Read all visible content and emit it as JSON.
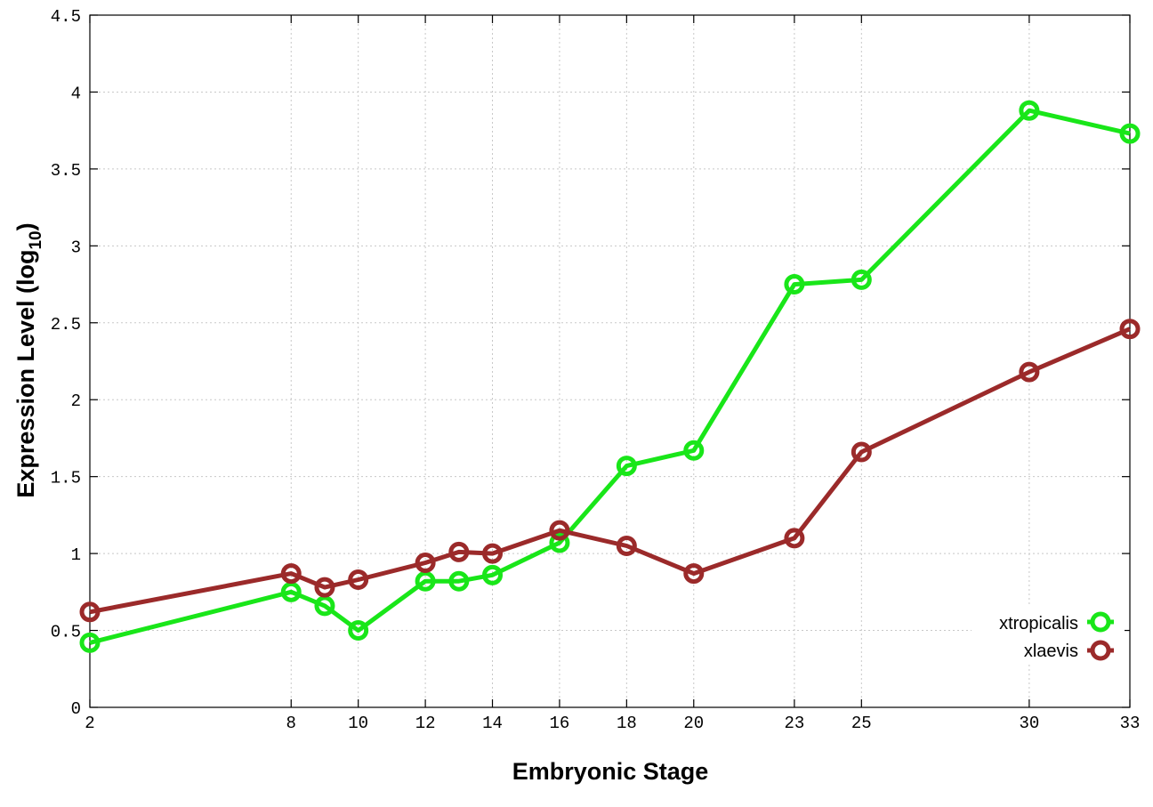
{
  "chart_data": {
    "type": "line",
    "title": "",
    "xlabel": "Embryonic Stage",
    "ylabel_main": "Expression Level (log",
    "ylabel_sub": "10",
    "ylabel_close": ")",
    "x": [
      2,
      8,
      9,
      10,
      12,
      13,
      14,
      16,
      18,
      20,
      23,
      25,
      30,
      33
    ],
    "xtick_labels": [
      "2",
      "8",
      "10",
      "12",
      "14",
      "16",
      "18",
      "20",
      "23",
      "25",
      "30",
      "33"
    ],
    "ytick_labels": [
      "0",
      "0.5",
      "1",
      "1.5",
      "2",
      "2.5",
      "3",
      "3.5",
      "4",
      "4.5"
    ],
    "xlim": [
      2,
      33
    ],
    "ylim": [
      0,
      4.5
    ],
    "grid": true,
    "legend_position": "bottom-right",
    "series": [
      {
        "name": "xtropicalis",
        "color": "#19e619",
        "values": [
          0.42,
          0.75,
          0.66,
          0.5,
          0.82,
          0.82,
          0.86,
          1.07,
          1.57,
          1.67,
          2.75,
          2.78,
          3.88,
          3.73
        ]
      },
      {
        "name": "xlaevis",
        "color": "#9b2a2a",
        "values": [
          0.62,
          0.87,
          0.78,
          0.83,
          0.94,
          1.01,
          1.0,
          1.15,
          1.05,
          0.87,
          1.1,
          1.66,
          2.18,
          2.46
        ]
      }
    ]
  }
}
